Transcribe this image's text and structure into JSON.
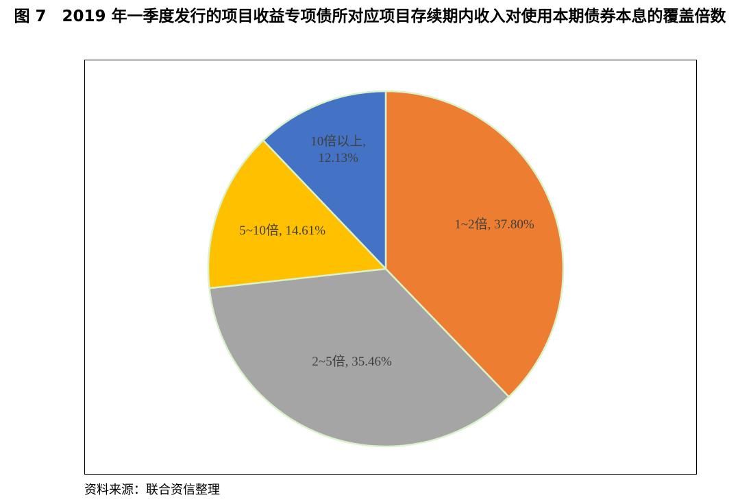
{
  "chart_data": {
    "type": "pie",
    "title": "图 7　2019 年一季度发行的项目收益专项债所对应项目存续期内收入对使用本期债券本息的覆盖倍数",
    "categories": [
      "1~2倍",
      "2~5倍",
      "5~10倍",
      "10倍以上"
    ],
    "values": [
      37.8,
      35.46,
      14.61,
      12.13
    ],
    "value_labels": [
      "1~2倍, 37.80%",
      "2~5倍, 35.46%",
      "5~10倍, 14.61%",
      "10倍以上, 12.13%"
    ],
    "colors": [
      "#ed7d31",
      "#a5a5a5",
      "#ffc000",
      "#4472c4"
    ],
    "source": "资料来源：联合资信整理"
  }
}
